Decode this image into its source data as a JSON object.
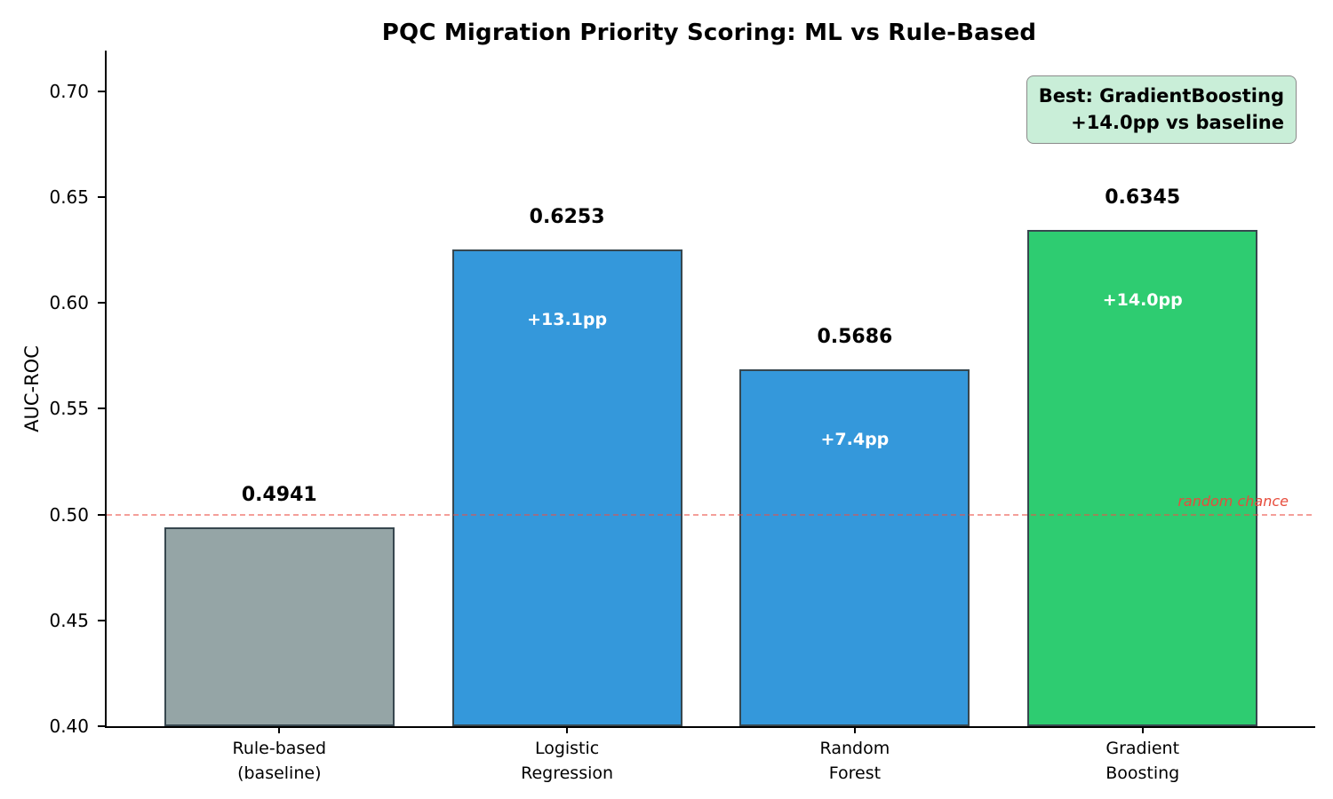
{
  "title": "PQC Migration Priority Scoring: ML vs Rule-Based",
  "chart_data": {
    "type": "bar",
    "title": "PQC Migration Priority Scoring: ML vs Rule-Based",
    "xlabel": "",
    "ylabel": "AUC-ROC",
    "categories": [
      "Rule-based\n(baseline)",
      "Logistic\nRegression",
      "Random\nForest",
      "Gradient\nBoosting"
    ],
    "values": [
      0.4941,
      0.6253,
      0.5686,
      0.6345
    ],
    "value_labels": [
      "0.4941",
      "0.6253",
      "0.5686",
      "0.6345"
    ],
    "delta_labels": [
      "",
      "+13.1pp",
      "+7.4pp",
      "+14.0pp"
    ],
    "bar_colors": [
      "#95a5a6",
      "#3498db",
      "#3498db",
      "#2ecc71"
    ],
    "bar_edge_color": "#37474f",
    "ylim": [
      0.4,
      0.7193
    ],
    "yticks": [
      0.4,
      0.45,
      0.5,
      0.55,
      0.6,
      0.65,
      0.7
    ],
    "ytick_labels": [
      "0.40",
      "0.45",
      "0.50",
      "0.55",
      "0.60",
      "0.65",
      "0.70"
    ],
    "grid": false,
    "legend_position": "none",
    "reference_line": {
      "value": 0.5,
      "label": "random chance",
      "style": "dashed",
      "color": "#e74c3c"
    },
    "annotation_box": {
      "line1": "Best: GradientBoosting",
      "line2": "+14.0pp vs baseline",
      "bg_color": "#c9eed8",
      "border_color": "#8a8a8a"
    }
  }
}
